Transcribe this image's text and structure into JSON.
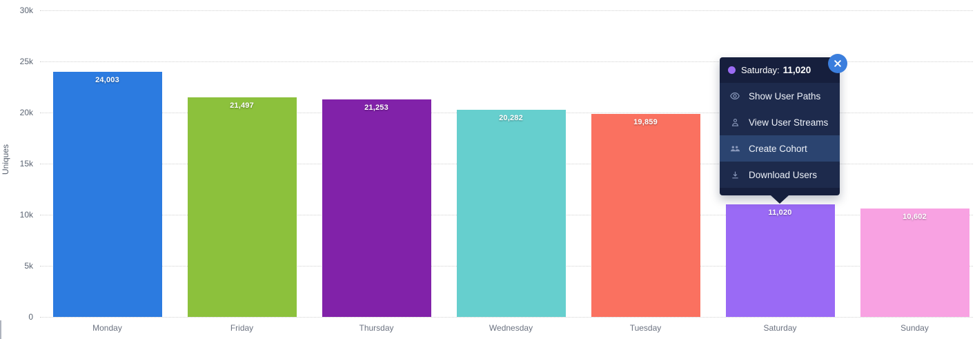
{
  "chart_data": {
    "type": "bar",
    "title": "",
    "xlabel": "",
    "ylabel": "Uniques",
    "ylim": [
      0,
      30000
    ],
    "grid": "horizontal-dotted",
    "categories": [
      "Monday",
      "Friday",
      "Thursday",
      "Wednesday",
      "Tuesday",
      "Saturday",
      "Sunday"
    ],
    "values": [
      24003,
      21497,
      21253,
      20282,
      19859,
      11020,
      10602
    ],
    "value_labels": [
      "24,003",
      "21,497",
      "21,253",
      "20,282",
      "19,859",
      "11,020",
      "10,602"
    ],
    "bar_colors": [
      "#2C7BE0",
      "#8CC13C",
      "#8122A9",
      "#66CFCE",
      "#FA7160",
      "#9A6AF5",
      "#F8A2E2"
    ],
    "yticks": [
      {
        "value": 0,
        "label": "0"
      },
      {
        "value": 5000,
        "label": "5k"
      },
      {
        "value": 10000,
        "label": "10k"
      },
      {
        "value": 15000,
        "label": "15k"
      },
      {
        "value": 20000,
        "label": "20k"
      },
      {
        "value": 25000,
        "label": "25k"
      },
      {
        "value": 30000,
        "label": "30k"
      }
    ]
  },
  "tooltip": {
    "label": "Saturday:",
    "value": "11,020",
    "menu_items": [
      {
        "icon": "eye-icon",
        "label": "Show User Paths",
        "active": false
      },
      {
        "icon": "user-icon",
        "label": "View User Streams",
        "active": false
      },
      {
        "icon": "users-icon",
        "label": "Create Cohort",
        "active": true
      },
      {
        "icon": "download-icon",
        "label": "Download Users",
        "active": false
      }
    ]
  },
  "colors": {
    "tt_header": "#161F3D",
    "tt_body": "#1D2A4C",
    "tt_active": "#2B4470",
    "tt_close": "#3B7EDD",
    "tt_dot": "#9B6CF3"
  }
}
